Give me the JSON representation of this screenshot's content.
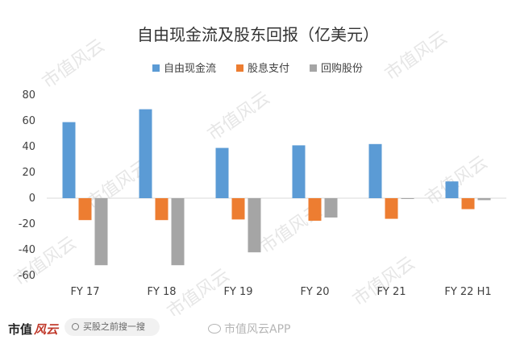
{
  "chart_data": {
    "type": "bar",
    "title": "自由现金流及股东回报（亿美元）",
    "categories": [
      "FY 17",
      "FY 18",
      "FY 19",
      "FY 20",
      "FY 21",
      "FY 22 H1"
    ],
    "series": [
      {
        "name": "自由现金流",
        "color": "#5b9bd5",
        "values": [
          59,
          69,
          39,
          41,
          42,
          13
        ]
      },
      {
        "name": "股息支付",
        "color": "#ed7d31",
        "values": [
          -17,
          -17,
          -16.5,
          -17.5,
          -16,
          -8.5
        ]
      },
      {
        "name": "回购股份",
        "color": "#a5a5a5",
        "values": [
          -52,
          -52,
          -42,
          -15,
          -0.5,
          -1.5
        ]
      }
    ],
    "ylim": [
      -60,
      80
    ],
    "yticks": [
      80,
      60,
      40,
      20,
      0,
      -20,
      -40,
      -60
    ],
    "grid": false,
    "legend": "top"
  },
  "watermark": {
    "text": "市值风云"
  },
  "footer": {
    "brand_main": "市值",
    "brand_accent": "风云",
    "search_text": "买股之前搜一搜",
    "weibo_text": "市值风云APP"
  }
}
